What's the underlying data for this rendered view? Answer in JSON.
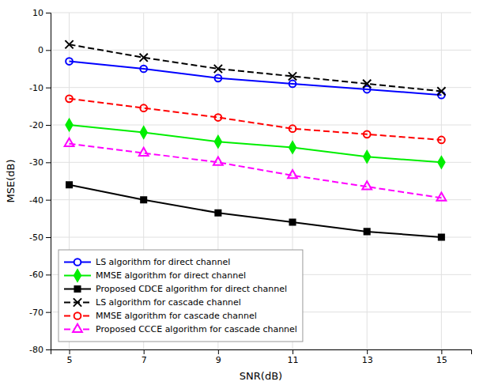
{
  "chart_data": {
    "type": "line",
    "x_label": "SNR(dB)",
    "y_label": "MSE(dB)",
    "x": [
      5,
      7,
      9,
      11,
      13,
      15
    ],
    "series": [
      {
        "name": "LS algorithm for direct channel",
        "color": "#0000ff",
        "values": [
          -3,
          -5,
          -7.5,
          -9,
          -10.5,
          -12
        ],
        "marker": "circle-open",
        "line_style": "solid"
      },
      {
        "name": "MMSE algorithm for direct channel",
        "color": "#00ee00",
        "values": [
          -20,
          -22,
          -24.5,
          -26,
          -28.5,
          -30
        ],
        "marker": "diamond",
        "line_style": "solid"
      },
      {
        "name": "Proposed CDCE algorithm for direct channel",
        "color": "#000000",
        "values": [
          -36,
          -40,
          -43.5,
          -46,
          -48.5,
          -50
        ],
        "marker": "square",
        "line_style": "solid"
      },
      {
        "name": "LS algorithm for cascade channel",
        "color": "#000000",
        "values": [
          1.5,
          -2,
          -5,
          -7,
          -9,
          -11
        ],
        "marker": "x",
        "line_style": "dashed"
      },
      {
        "name": "MMSE algorithm for cascade channel",
        "color": "#ff0000",
        "values": [
          -13,
          -15.5,
          -18,
          -21,
          -22.5,
          -24
        ],
        "marker": "circle-open",
        "line_style": "dashed"
      },
      {
        "name": "Proposed CCCE algorithm for cascade channel",
        "color": "#ff00ff",
        "values": [
          -25,
          -27.5,
          -30,
          -33.5,
          -36.5,
          -39.5
        ],
        "marker": "triangle-open",
        "line_style": "dashed"
      }
    ],
    "xlim": [
      4.5,
      15.8
    ],
    "ylim": [
      -80,
      10
    ],
    "xticks": [
      5,
      7,
      9,
      11,
      13,
      15
    ],
    "yticks": [
      -80,
      -70,
      -60,
      -50,
      -40,
      -30,
      -20,
      -10,
      0,
      10
    ],
    "grid": true,
    "legend": "lower left"
  }
}
